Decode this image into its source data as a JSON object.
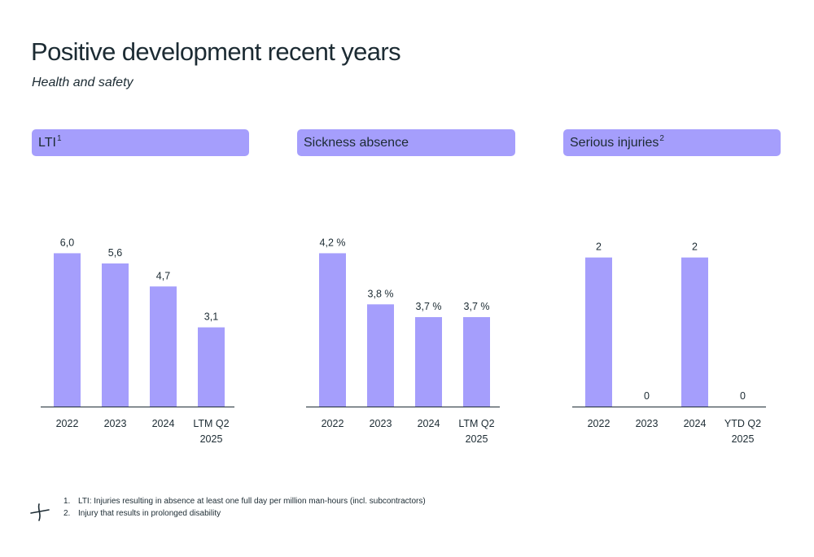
{
  "title": "Positive development recent years",
  "subtitle": "Health and safety",
  "bar_color": "#a59efc",
  "chart_data": [
    {
      "type": "bar",
      "title": "LTI",
      "title_superscript": "1",
      "categories": [
        "2022",
        "2023",
        "2024",
        "LTM Q2|2025"
      ],
      "values": [
        6.0,
        5.6,
        4.7,
        3.1
      ],
      "labels": [
        "6,0",
        "5,6",
        "4,7",
        "3,1"
      ],
      "ylim": [
        0,
        7
      ]
    },
    {
      "type": "bar",
      "title": "Sickness absence",
      "title_superscript": "",
      "categories": [
        "2022",
        "2023",
        "2024",
        "LTM Q2|2025"
      ],
      "values": [
        4.2,
        3.8,
        3.7,
        3.7
      ],
      "labels": [
        "4,2 %",
        "3,8 %",
        "3,7 %",
        "3,7 %"
      ],
      "ylim": [
        3.0,
        4.4
      ]
    },
    {
      "type": "bar",
      "title": "Serious injuries",
      "title_superscript": "2",
      "categories": [
        "2022",
        "2023",
        "2024",
        "YTD Q2|2025"
      ],
      "values": [
        2,
        0,
        2,
        0
      ],
      "labels": [
        "2",
        "0",
        "2",
        "0"
      ],
      "ylim": [
        0,
        2.4
      ]
    }
  ],
  "footnotes": [
    {
      "num": "1.",
      "text": "LTI: Injuries resulting in absence at least one full day per million man-hours (incl. subcontractors)"
    },
    {
      "num": "2.",
      "text": "Injury that results in prolonged disability"
    }
  ],
  "logo_icon": "company-logo-icon"
}
